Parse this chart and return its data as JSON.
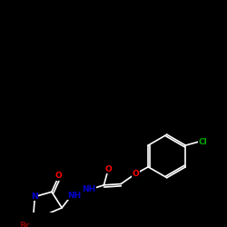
{
  "background_color": "#000000",
  "line_color": "#ffffff",
  "atom_colors": {
    "O": "#ff0000",
    "N": "#0000cd",
    "Br": "#8b0000",
    "Cl": "#00aa00",
    "C": "#ffffff",
    "H": "#ffffff"
  },
  "figsize": [
    2.5,
    2.5
  ],
  "dpi": 100
}
